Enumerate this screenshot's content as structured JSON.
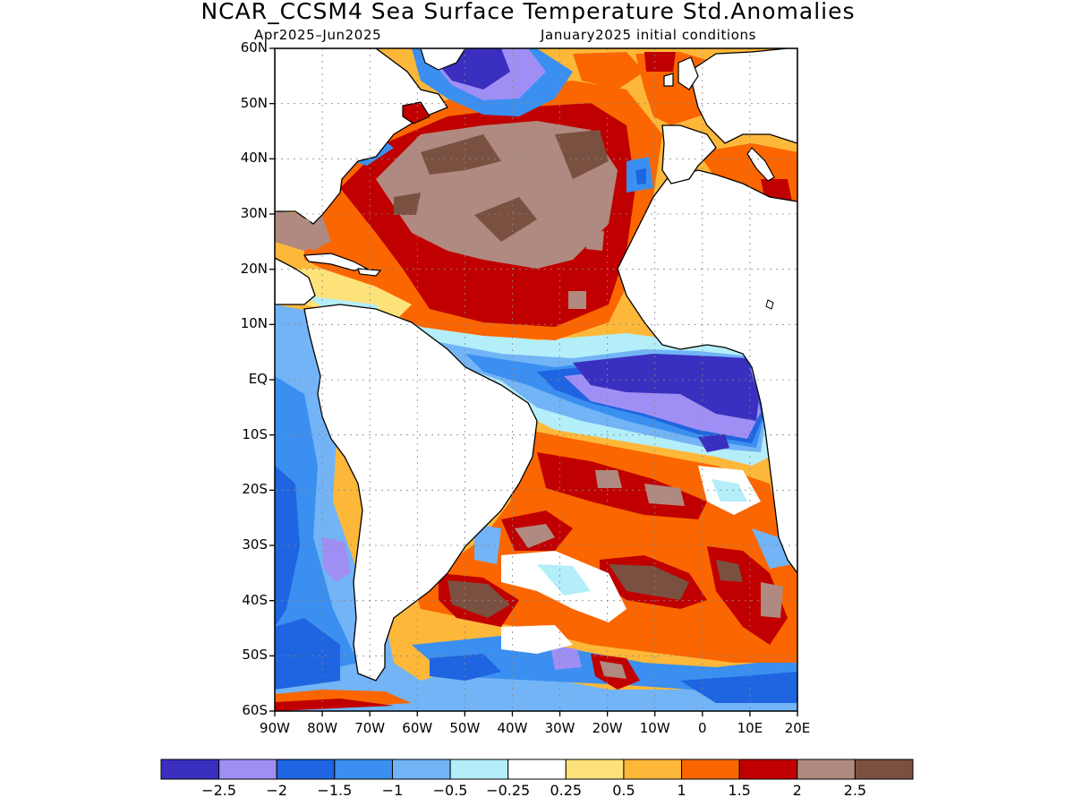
{
  "title": "NCAR_CCSM4 Sea Surface Temperature Std.Anomalies",
  "subtitle_left": "Apr2025–Jun2025",
  "subtitle_right": "January2025 initial conditions",
  "lat_labels": [
    "60N",
    "50N",
    "40N",
    "30N",
    "20N",
    "10N",
    "EQ",
    "10S",
    "20S",
    "30S",
    "40S",
    "50S",
    "60S"
  ],
  "lon_labels": [
    "90W",
    "80W",
    "70W",
    "60W",
    "50W",
    "40W",
    "30W",
    "20W",
    "10W",
    "0",
    "10E",
    "20E"
  ],
  "colorbar": {
    "colors": [
      "#3a2fbf",
      "#9f8ff5",
      "#1f64e0",
      "#3a8ff0",
      "#72b4f6",
      "#b4eef8",
      "#ffffff",
      "#fde27a",
      "#fdb83a",
      "#fb6600",
      "#c00000",
      "#b08a80",
      "#7a5040"
    ],
    "labels": [
      "−2.5",
      "−2",
      "−1.5",
      "−1",
      "−0.5",
      "−0.25",
      "0.25",
      "0.5",
      "1",
      "1.5",
      "2",
      "2.5"
    ]
  },
  "land_color": "#ffffff"
}
